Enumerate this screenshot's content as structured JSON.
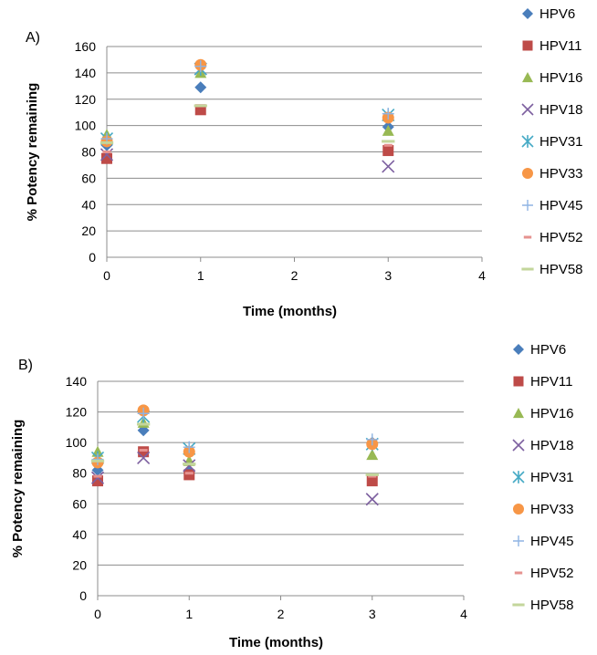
{
  "series_style": [
    {
      "name": "HPV6",
      "marker": "diamond",
      "color": "#4a7ebb"
    },
    {
      "name": "HPV11",
      "marker": "square",
      "color": "#be4b48"
    },
    {
      "name": "HPV16",
      "marker": "triangle",
      "color": "#98b954"
    },
    {
      "name": "HPV18",
      "marker": "x",
      "color": "#7d60a0"
    },
    {
      "name": "HPV31",
      "marker": "star",
      "color": "#46aac5"
    },
    {
      "name": "HPV33",
      "marker": "circle",
      "color": "#f79646"
    },
    {
      "name": "HPV45",
      "marker": "plus",
      "color": "#8fb4e3"
    },
    {
      "name": "HPV52",
      "marker": "dash",
      "color": "#e6928f"
    },
    {
      "name": "HPV58",
      "marker": "bar",
      "color": "#c3d69b"
    }
  ],
  "chart_data": [
    {
      "type": "scatter",
      "panel_label": "A)",
      "xlabel": "Time (months)",
      "ylabel": "% Potency remaining",
      "xlim": [
        0,
        4
      ],
      "ylim": [
        0,
        160
      ],
      "xticks": [
        "0",
        "1",
        "2",
        "3",
        "4"
      ],
      "yticks": [
        "0",
        "20",
        "40",
        "60",
        "80",
        "100",
        "120",
        "140",
        "160"
      ],
      "grid": "horizontal",
      "legend": "right",
      "series": [
        {
          "name": "HPV6",
          "x": [
            0,
            1,
            3
          ],
          "y": [
            85,
            129,
            99
          ]
        },
        {
          "name": "HPV11",
          "x": [
            0,
            1,
            3
          ],
          "y": [
            75,
            112,
            81
          ]
        },
        {
          "name": "HPV16",
          "x": [
            0,
            1,
            3
          ],
          "y": [
            93,
            140,
            96
          ]
        },
        {
          "name": "HPV18",
          "x": [
            0,
            1,
            3
          ],
          "y": [
            78,
            143,
            69
          ]
        },
        {
          "name": "HPV31",
          "x": [
            0,
            1,
            3
          ],
          "y": [
            90,
            143,
            108
          ]
        },
        {
          "name": "HPV33",
          "x": [
            0,
            1,
            3
          ],
          "y": [
            88,
            146,
            106
          ]
        },
        {
          "name": "HPV45",
          "x": [
            0,
            1,
            3
          ],
          "y": [
            90,
            145,
            109
          ]
        },
        {
          "name": "HPV52",
          "x": [
            0,
            1,
            3
          ],
          "y": [
            80,
            115,
            85
          ]
        },
        {
          "name": "HPV58",
          "x": [
            0,
            1,
            3
          ],
          "y": [
            87,
            115,
            88
          ]
        }
      ]
    },
    {
      "type": "scatter",
      "panel_label": "B)",
      "xlabel": "Time (months)",
      "ylabel": "% Potency remaining",
      "xlim": [
        0,
        4
      ],
      "ylim": [
        0,
        140
      ],
      "xticks": [
        "0",
        "1",
        "2",
        "3",
        "4"
      ],
      "yticks": [
        "0",
        "20",
        "40",
        "60",
        "80",
        "100",
        "120",
        "140"
      ],
      "grid": "horizontal",
      "legend": "right",
      "series": [
        {
          "name": "HPV6",
          "x": [
            0,
            0.5,
            1,
            3
          ],
          "y": [
            82,
            108,
            81,
            100
          ]
        },
        {
          "name": "HPV11",
          "x": [
            0,
            0.5,
            1,
            3
          ],
          "y": [
            75,
            94,
            79,
            75
          ]
        },
        {
          "name": "HPV16",
          "x": [
            0,
            0.5,
            1,
            3
          ],
          "y": [
            94,
            113,
            88,
            92
          ]
        },
        {
          "name": "HPV18",
          "x": [
            0,
            0.5,
            1,
            3
          ],
          "y": [
            77,
            90,
            85,
            63
          ]
        },
        {
          "name": "HPV31",
          "x": [
            0,
            0.5,
            1,
            3
          ],
          "y": [
            90,
            117,
            96,
            99
          ]
        },
        {
          "name": "HPV33",
          "x": [
            0,
            0.5,
            1,
            3
          ],
          "y": [
            87,
            121,
            94,
            99
          ]
        },
        {
          "name": "HPV45",
          "x": [
            0,
            0.5,
            1,
            3
          ],
          "y": [
            89,
            119,
            97,
            102
          ]
        },
        {
          "name": "HPV52",
          "x": [
            0,
            0.5,
            1,
            3
          ],
          "y": [
            78,
            95,
            80,
            78
          ]
        },
        {
          "name": "HPV58",
          "x": [
            0,
            0.5,
            1,
            3
          ],
          "y": [
            88,
            112,
            86,
            79
          ]
        }
      ]
    }
  ]
}
